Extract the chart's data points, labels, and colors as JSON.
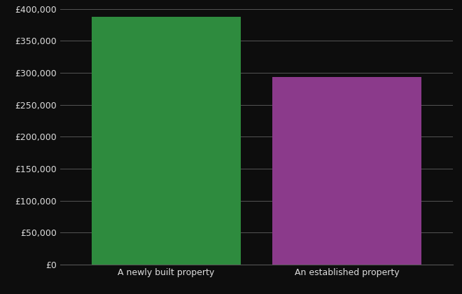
{
  "categories": [
    "A newly built property",
    "An established property"
  ],
  "values": [
    388000,
    293000
  ],
  "bar_colors": [
    "#2e8b3e",
    "#8b3a8b"
  ],
  "background_color": "#0d0d0d",
  "text_color": "#dddddd",
  "grid_color": "#555555",
  "ylim": [
    0,
    400000
  ],
  "yticks": [
    0,
    50000,
    100000,
    150000,
    200000,
    250000,
    300000,
    350000,
    400000
  ],
  "bar_width": 0.38,
  "bar_positions": [
    0.27,
    0.73
  ],
  "xlabel_fontsize": 9,
  "ylabel_fontsize": 9
}
